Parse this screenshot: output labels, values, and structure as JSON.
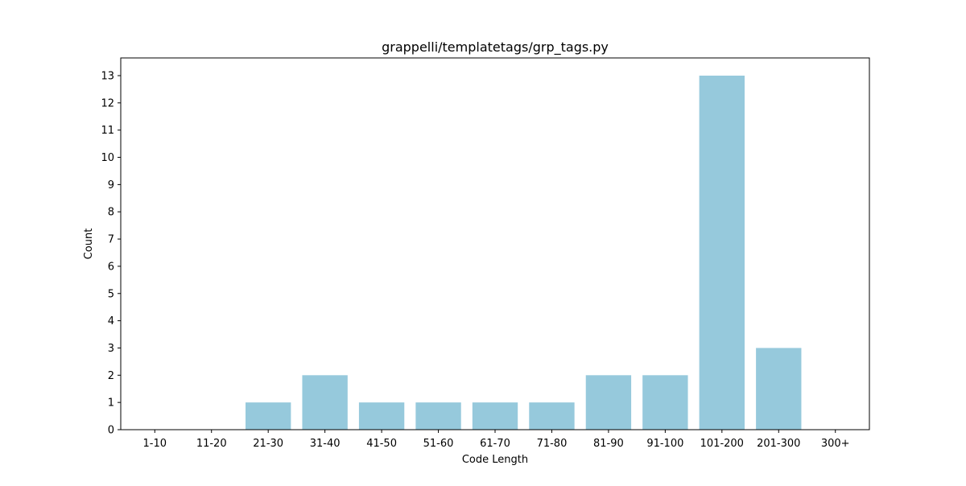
{
  "chart_data": {
    "type": "bar",
    "title": "grappelli/templatetags/grp_tags.py",
    "xlabel": "Code Length",
    "ylabel": "Count",
    "categories": [
      "1-10",
      "11-20",
      "21-30",
      "31-40",
      "41-50",
      "51-60",
      "61-70",
      "71-80",
      "81-90",
      "91-100",
      "101-200",
      "201-300",
      "300+"
    ],
    "values": [
      0,
      0,
      1,
      2,
      1,
      1,
      1,
      1,
      2,
      2,
      13,
      3,
      0
    ],
    "ylim": [
      0,
      13.65
    ],
    "yticks": [
      0,
      1,
      2,
      3,
      4,
      5,
      6,
      7,
      8,
      9,
      10,
      11,
      12,
      13
    ],
    "grid": false,
    "bar_color": "#96c9dc"
  }
}
